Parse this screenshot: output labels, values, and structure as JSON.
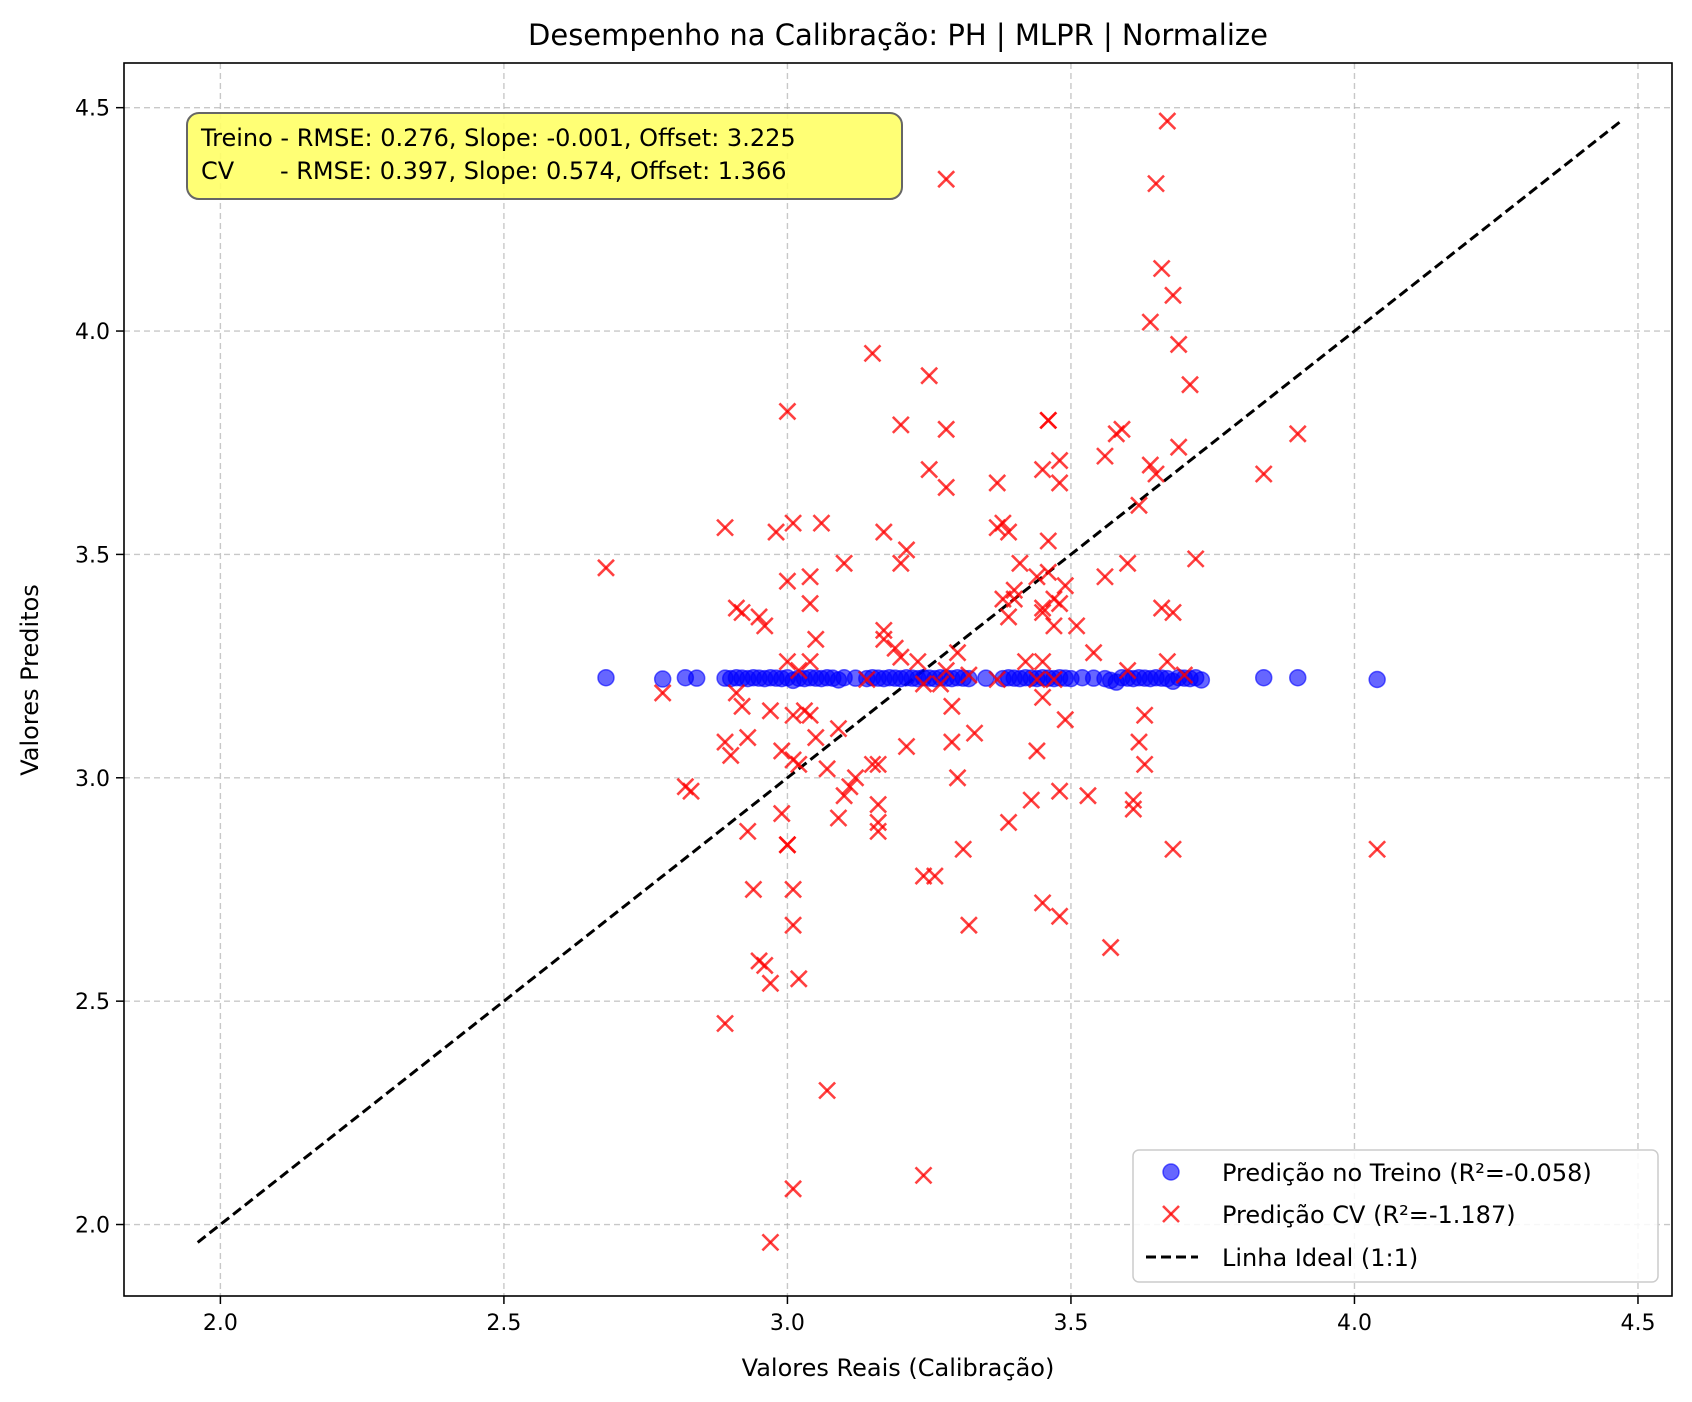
{
  "chart_data": {
    "type": "scatter",
    "title": "Desempenho na Calibração: PH | MLPR | Normalize",
    "xlabel": "Valores Reais (Calibração)",
    "ylabel": "Valores Preditos",
    "xlim": [
      1.83,
      4.56
    ],
    "ylim": [
      1.84,
      4.6
    ],
    "xticks": [
      2.0,
      2.5,
      3.0,
      3.5,
      4.0,
      4.5
    ],
    "yticks": [
      2.0,
      2.5,
      3.0,
      3.5,
      4.0,
      4.5
    ],
    "xtick_labels": [
      "2.0",
      "2.5",
      "3.0",
      "3.5",
      "4.0",
      "4.5"
    ],
    "ytick_labels": [
      "2.0",
      "2.5",
      "3.0",
      "3.5",
      "4.0",
      "4.5"
    ],
    "grid": true,
    "legend_position": "lower-right",
    "annotation": {
      "lines": [
        "Treino - RMSE: 0.276, Slope: -0.001, Offset: 3.225",
        "CV      - RMSE: 0.397, Slope: 0.574, Offset: 1.366"
      ],
      "background": "#ffff66"
    },
    "series": [
      {
        "name": "Predição no Treino (R²=-0.058)",
        "marker": "circle",
        "color": "#0000ff",
        "x": [
          2.68,
          2.78,
          2.82,
          2.84,
          2.89,
          2.9,
          2.91,
          2.92,
          2.93,
          2.94,
          2.95,
          2.96,
          2.97,
          2.98,
          2.99,
          3.0,
          3.01,
          3.02,
          3.03,
          3.04,
          3.05,
          3.06,
          3.07,
          3.08,
          3.09,
          3.1,
          3.12,
          3.14,
          3.15,
          3.16,
          3.17,
          3.18,
          3.19,
          3.2,
          3.21,
          3.22,
          3.23,
          3.24,
          3.25,
          3.26,
          3.27,
          3.28,
          3.29,
          3.3,
          3.31,
          3.32,
          3.35,
          3.38,
          3.39,
          3.4,
          3.41,
          3.42,
          3.43,
          3.44,
          3.45,
          3.46,
          3.47,
          3.48,
          3.49,
          3.5,
          3.52,
          3.54,
          3.56,
          3.57,
          3.58,
          3.59,
          3.6,
          3.61,
          3.62,
          3.63,
          3.64,
          3.65,
          3.66,
          3.67,
          3.68,
          3.69,
          3.7,
          3.71,
          3.72,
          3.73,
          3.84,
          3.9,
          4.04
        ],
        "y": [
          3.224,
          3.221,
          3.224,
          3.223,
          3.223,
          3.222,
          3.224,
          3.223,
          3.222,
          3.224,
          3.223,
          3.222,
          3.224,
          3.223,
          3.222,
          3.224,
          3.218,
          3.223,
          3.222,
          3.224,
          3.223,
          3.222,
          3.224,
          3.223,
          3.219,
          3.224,
          3.223,
          3.222,
          3.224,
          3.223,
          3.222,
          3.224,
          3.223,
          3.222,
          3.224,
          3.223,
          3.222,
          3.224,
          3.223,
          3.222,
          3.224,
          3.223,
          3.222,
          3.224,
          3.223,
          3.222,
          3.223,
          3.222,
          3.224,
          3.223,
          3.222,
          3.224,
          3.223,
          3.222,
          3.224,
          3.223,
          3.222,
          3.224,
          3.223,
          3.222,
          3.224,
          3.223,
          3.222,
          3.218,
          3.214,
          3.224,
          3.223,
          3.222,
          3.224,
          3.223,
          3.222,
          3.224,
          3.223,
          3.222,
          3.216,
          3.224,
          3.223,
          3.222,
          3.224,
          3.219,
          3.224,
          3.224,
          3.22
        ]
      },
      {
        "name": "Predição CV (R²=-1.187)",
        "marker": "x",
        "color": "#ff0000",
        "x": [
          2.68,
          2.78,
          2.82,
          2.83,
          2.89,
          2.89,
          2.89,
          2.9,
          2.91,
          2.91,
          2.92,
          2.92,
          2.93,
          2.93,
          2.94,
          2.95,
          2.95,
          2.96,
          2.96,
          2.97,
          2.97,
          2.97,
          2.98,
          2.99,
          2.99,
          3.0,
          3.0,
          3.0,
          3.0,
          3.0,
          3.01,
          3.01,
          3.01,
          3.01,
          3.01,
          3.01,
          3.02,
          3.02,
          3.02,
          3.03,
          3.04,
          3.04,
          3.04,
          3.04,
          3.05,
          3.05,
          3.06,
          3.07,
          3.07,
          3.09,
          3.09,
          3.1,
          3.1,
          3.11,
          3.12,
          3.14,
          3.15,
          3.15,
          3.16,
          3.16,
          3.16,
          3.16,
          3.17,
          3.17,
          3.17,
          3.19,
          3.2,
          3.2,
          3.2,
          3.21,
          3.21,
          3.23,
          3.24,
          3.24,
          3.24,
          3.25,
          3.25,
          3.26,
          3.27,
          3.28,
          3.28,
          3.28,
          3.28,
          3.29,
          3.29,
          3.3,
          3.3,
          3.31,
          3.32,
          3.32,
          3.33,
          3.37,
          3.37,
          3.37,
          3.38,
          3.38,
          3.39,
          3.39,
          3.39,
          3.4,
          3.4,
          3.41,
          3.42,
          3.43,
          3.44,
          3.44,
          3.44,
          3.45,
          3.45,
          3.45,
          3.45,
          3.45,
          3.45,
          3.46,
          3.46,
          3.46,
          3.46,
          3.47,
          3.47,
          3.47,
          3.48,
          3.48,
          3.48,
          3.48,
          3.48,
          3.49,
          3.49,
          3.51,
          3.53,
          3.54,
          3.56,
          3.56,
          3.57,
          3.58,
          3.59,
          3.6,
          3.6,
          3.61,
          3.61,
          3.62,
          3.62,
          3.63,
          3.63,
          3.64,
          3.64,
          3.65,
          3.65,
          3.66,
          3.66,
          3.67,
          3.67,
          3.68,
          3.68,
          3.68,
          3.69,
          3.69,
          3.7,
          3.71,
          3.72,
          3.84,
          3.9,
          4.04
        ],
        "y": [
          3.47,
          3.19,
          2.98,
          2.97,
          3.56,
          3.08,
          2.45,
          3.05,
          3.19,
          3.38,
          3.16,
          3.37,
          3.09,
          2.88,
          2.75,
          2.59,
          3.36,
          2.58,
          3.34,
          2.54,
          3.15,
          1.96,
          3.55,
          2.92,
          3.06,
          3.82,
          3.44,
          3.26,
          2.85,
          2.85,
          3.57,
          3.04,
          3.14,
          2.75,
          2.67,
          2.08,
          3.03,
          3.24,
          2.55,
          3.15,
          3.45,
          3.39,
          3.26,
          3.14,
          3.31,
          3.09,
          3.57,
          3.02,
          2.3,
          3.11,
          2.91,
          3.48,
          2.96,
          2.98,
          3.0,
          3.22,
          3.95,
          3.03,
          2.88,
          2.9,
          2.94,
          3.03,
          3.33,
          3.55,
          3.31,
          3.29,
          3.79,
          3.48,
          3.27,
          3.51,
          3.07,
          3.26,
          2.78,
          2.11,
          3.21,
          3.9,
          3.69,
          2.78,
          3.21,
          4.34,
          3.78,
          3.65,
          3.24,
          3.16,
          3.08,
          3.28,
          3.0,
          2.84,
          2.67,
          3.23,
          3.1,
          3.66,
          3.56,
          3.22,
          3.57,
          3.4,
          3.55,
          3.36,
          2.9,
          3.4,
          3.42,
          3.48,
          3.26,
          2.95,
          3.45,
          3.06,
          3.22,
          3.69,
          3.38,
          3.37,
          3.18,
          2.72,
          3.26,
          3.8,
          3.8,
          3.53,
          3.46,
          3.4,
          3.34,
          3.22,
          3.71,
          3.66,
          3.39,
          2.97,
          2.69,
          3.43,
          3.13,
          3.34,
          2.96,
          3.28,
          3.72,
          3.45,
          2.62,
          3.77,
          3.78,
          3.48,
          3.24,
          2.95,
          2.93,
          3.61,
          3.08,
          3.03,
          3.14,
          4.02,
          3.7,
          4.33,
          3.68,
          3.38,
          4.14,
          4.47,
          3.26,
          4.08,
          3.37,
          2.84,
          3.97,
          3.74,
          3.23,
          3.88,
          3.49,
          3.68,
          3.77,
          2.84
        ]
      },
      {
        "name": "Linha Ideal (1:1)",
        "marker": "dashed-line",
        "color": "#000000",
        "x": [
          1.96,
          4.47
        ],
        "y": [
          1.96,
          4.47
        ]
      }
    ]
  }
}
